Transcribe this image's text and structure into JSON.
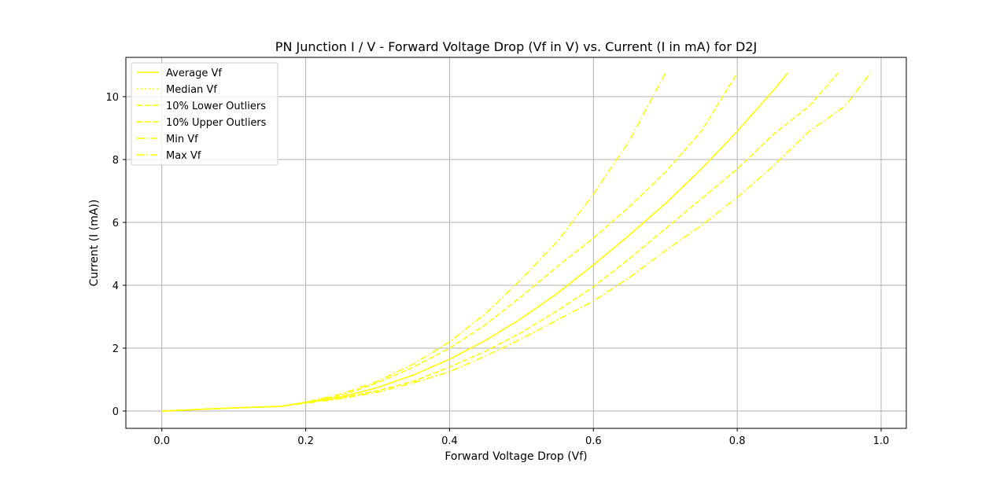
{
  "chart_data": {
    "type": "line",
    "title": "PN Junction I / V - Forward Voltage Drop (Vf in V) vs. Current (I in mA) for D2J",
    "xlabel": "Forward Voltage Drop (Vf)",
    "ylabel": "Current (I (mA))",
    "xlim": [
      -0.05,
      1.035
    ],
    "ylim": [
      -0.55,
      11.25
    ],
    "xticks": [
      0.0,
      0.2,
      0.4,
      0.6,
      0.8,
      1.0
    ],
    "xtick_labels": [
      "0.0",
      "0.2",
      "0.4",
      "0.6",
      "0.8",
      "1.0"
    ],
    "yticks": [
      0,
      2,
      4,
      6,
      8,
      10
    ],
    "ytick_labels": [
      "0",
      "2",
      "4",
      "6",
      "8",
      "10"
    ],
    "grid": true,
    "legend_position": "top-left",
    "color": "#ffff00",
    "series": [
      {
        "name": "Average Vf",
        "style": "solid",
        "points": [
          [
            0,
            0
          ],
          [
            0.05,
            0.05
          ],
          [
            0.1,
            0.1
          ],
          [
            0.165,
            0.15
          ],
          [
            0.2,
            0.28
          ],
          [
            0.25,
            0.45
          ],
          [
            0.3,
            0.75
          ],
          [
            0.35,
            1.15
          ],
          [
            0.4,
            1.65
          ],
          [
            0.45,
            2.25
          ],
          [
            0.5,
            2.95
          ],
          [
            0.55,
            3.75
          ],
          [
            0.6,
            4.65
          ],
          [
            0.65,
            5.6
          ],
          [
            0.7,
            6.6
          ],
          [
            0.75,
            7.7
          ],
          [
            0.8,
            8.9
          ],
          [
            0.85,
            10.2
          ],
          [
            0.87,
            10.75
          ]
        ]
      },
      {
        "name": "Median Vf",
        "style": "dotted",
        "points": [
          [
            0,
            0
          ],
          [
            0.05,
            0.05
          ],
          [
            0.1,
            0.1
          ],
          [
            0.165,
            0.15
          ],
          [
            0.2,
            0.28
          ],
          [
            0.25,
            0.45
          ],
          [
            0.3,
            0.75
          ],
          [
            0.35,
            1.15
          ],
          [
            0.4,
            1.65
          ],
          [
            0.45,
            2.25
          ],
          [
            0.5,
            2.95
          ],
          [
            0.55,
            3.75
          ],
          [
            0.6,
            4.65
          ],
          [
            0.65,
            5.6
          ],
          [
            0.7,
            6.6
          ],
          [
            0.75,
            7.7
          ],
          [
            0.8,
            8.9
          ],
          [
            0.85,
            10.2
          ],
          [
            0.87,
            10.75
          ]
        ]
      },
      {
        "name": "10% Lower Outliers",
        "style": "dashed",
        "points": [
          [
            0,
            0
          ],
          [
            0.05,
            0.05
          ],
          [
            0.1,
            0.1
          ],
          [
            0.165,
            0.15
          ],
          [
            0.2,
            0.28
          ],
          [
            0.25,
            0.5
          ],
          [
            0.3,
            0.9
          ],
          [
            0.35,
            1.4
          ],
          [
            0.4,
            2.0
          ],
          [
            0.45,
            2.75
          ],
          [
            0.5,
            3.65
          ],
          [
            0.55,
            4.6
          ],
          [
            0.6,
            5.5
          ],
          [
            0.65,
            6.5
          ],
          [
            0.7,
            7.6
          ],
          [
            0.75,
            8.9
          ],
          [
            0.8,
            10.75
          ]
        ]
      },
      {
        "name": "10% Upper Outliers",
        "style": "dashed",
        "points": [
          [
            0,
            0
          ],
          [
            0.05,
            0.05
          ],
          [
            0.1,
            0.1
          ],
          [
            0.165,
            0.15
          ],
          [
            0.2,
            0.27
          ],
          [
            0.25,
            0.42
          ],
          [
            0.3,
            0.65
          ],
          [
            0.35,
            0.95
          ],
          [
            0.4,
            1.4
          ],
          [
            0.45,
            1.9
          ],
          [
            0.5,
            2.5
          ],
          [
            0.55,
            3.2
          ],
          [
            0.6,
            3.95
          ],
          [
            0.65,
            4.85
          ],
          [
            0.7,
            5.8
          ],
          [
            0.75,
            6.75
          ],
          [
            0.8,
            7.7
          ],
          [
            0.85,
            8.8
          ],
          [
            0.9,
            9.7
          ],
          [
            0.94,
            10.75
          ]
        ]
      },
      {
        "name": "Min Vf",
        "style": "dashdot",
        "points": [
          [
            0,
            0
          ],
          [
            0.05,
            0.05
          ],
          [
            0.1,
            0.1
          ],
          [
            0.165,
            0.15
          ],
          [
            0.2,
            0.28
          ],
          [
            0.25,
            0.55
          ],
          [
            0.3,
            0.95
          ],
          [
            0.35,
            1.5
          ],
          [
            0.4,
            2.2
          ],
          [
            0.45,
            3.1
          ],
          [
            0.5,
            4.2
          ],
          [
            0.55,
            5.4
          ],
          [
            0.6,
            6.9
          ],
          [
            0.65,
            8.6
          ],
          [
            0.7,
            10.75
          ]
        ]
      },
      {
        "name": "Max Vf",
        "style": "dashdot",
        "points": [
          [
            0,
            0
          ],
          [
            0.05,
            0.05
          ],
          [
            0.1,
            0.1
          ],
          [
            0.165,
            0.15
          ],
          [
            0.2,
            0.25
          ],
          [
            0.25,
            0.4
          ],
          [
            0.3,
            0.6
          ],
          [
            0.35,
            0.9
          ],
          [
            0.4,
            1.25
          ],
          [
            0.45,
            1.75
          ],
          [
            0.5,
            2.3
          ],
          [
            0.55,
            2.9
          ],
          [
            0.6,
            3.5
          ],
          [
            0.65,
            4.25
          ],
          [
            0.7,
            5.1
          ],
          [
            0.75,
            5.9
          ],
          [
            0.8,
            6.8
          ],
          [
            0.85,
            7.8
          ],
          [
            0.9,
            8.9
          ],
          [
            0.95,
            9.7
          ],
          [
            0.985,
            10.75
          ]
        ]
      }
    ]
  }
}
